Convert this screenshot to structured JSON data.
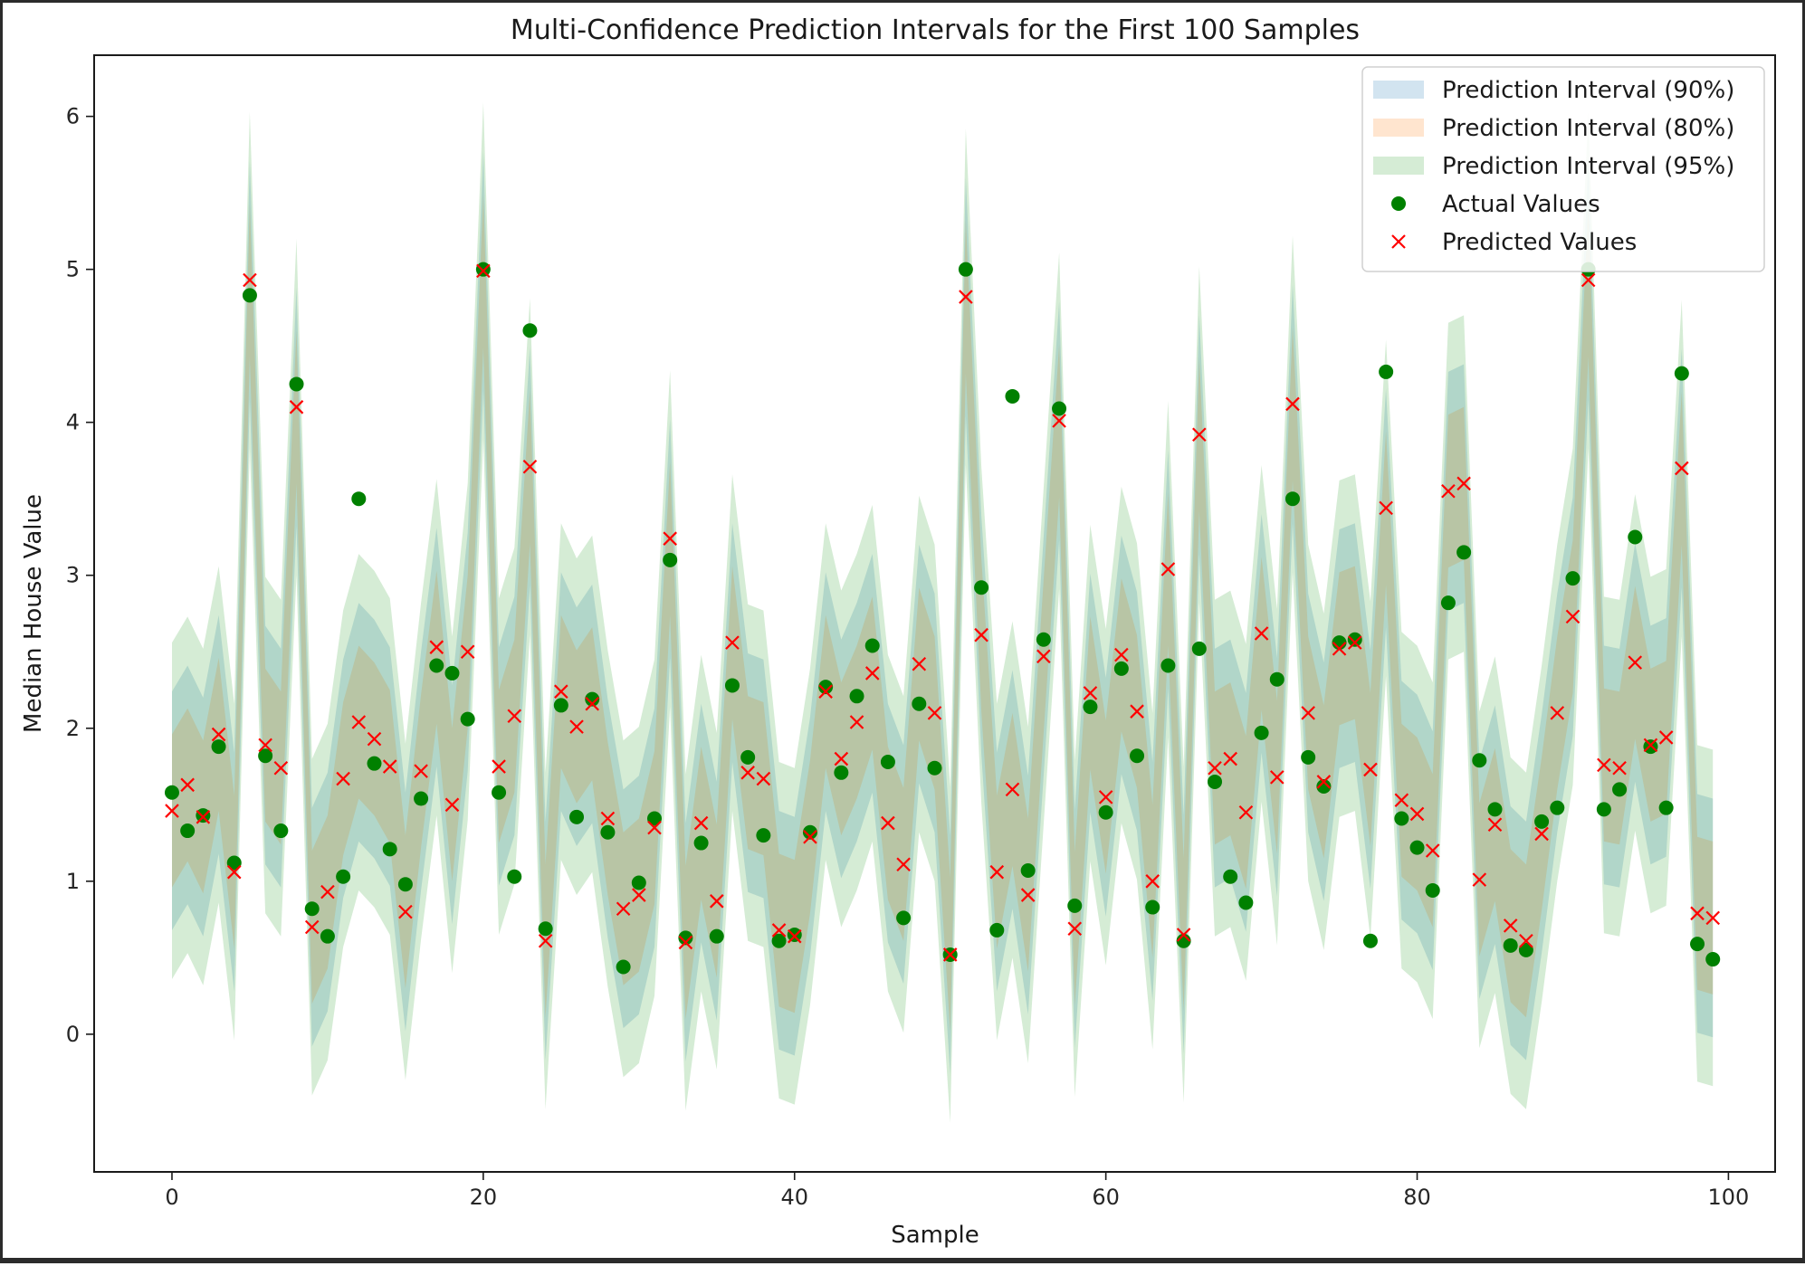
{
  "chart_data": {
    "type": "line",
    "title": "Multi-Confidence Prediction Intervals for the First 100 Samples",
    "xlabel": "Sample",
    "ylabel": "Median House Value",
    "xlim": [
      -5,
      103
    ],
    "ylim": [
      -0.9,
      6.4
    ],
    "xticks": [
      0,
      20,
      40,
      60,
      80,
      100
    ],
    "yticks": [
      0,
      1,
      2,
      3,
      4,
      5,
      6
    ],
    "grid": false,
    "legend_position": "upper right",
    "x": [
      0,
      1,
      2,
      3,
      4,
      5,
      6,
      7,
      8,
      9,
      10,
      11,
      12,
      13,
      14,
      15,
      16,
      17,
      18,
      19,
      20,
      21,
      22,
      23,
      24,
      25,
      26,
      27,
      28,
      29,
      30,
      31,
      32,
      33,
      34,
      35,
      36,
      37,
      38,
      39,
      40,
      41,
      42,
      43,
      44,
      45,
      46,
      47,
      48,
      49,
      50,
      51,
      52,
      53,
      54,
      55,
      56,
      57,
      58,
      59,
      60,
      61,
      62,
      63,
      64,
      65,
      66,
      67,
      68,
      69,
      70,
      71,
      72,
      73,
      74,
      75,
      76,
      77,
      78,
      79,
      80,
      81,
      82,
      83,
      84,
      85,
      86,
      87,
      88,
      89,
      90,
      91,
      92,
      93,
      94,
      95,
      96,
      97,
      98,
      99
    ],
    "series": [
      {
        "name": "Prediction Interval (90%)",
        "kind": "band",
        "color": "#1f77b4",
        "opacity": 0.2,
        "half_width": 0.78
      },
      {
        "name": "Prediction Interval (80%)",
        "kind": "band",
        "color": "#ff7f0e",
        "opacity": 0.2,
        "half_width": 0.5
      },
      {
        "name": "Prediction Interval (95%)",
        "kind": "band",
        "color": "#2ca02c",
        "opacity": 0.2,
        "half_width": 1.1
      },
      {
        "name": "Actual Values",
        "kind": "points",
        "marker": "circle",
        "color": "#008000",
        "values": [
          1.58,
          1.33,
          1.43,
          1.88,
          1.12,
          4.83,
          1.82,
          1.33,
          4.25,
          0.82,
          0.64,
          1.03,
          3.5,
          1.77,
          1.21,
          0.98,
          1.54,
          2.41,
          2.36,
          2.06,
          5.0,
          1.58,
          1.03,
          4.6,
          0.69,
          2.15,
          1.42,
          2.19,
          1.32,
          0.44,
          0.99,
          1.41,
          3.1,
          0.63,
          1.25,
          0.64,
          2.28,
          1.81,
          1.3,
          0.61,
          0.65,
          1.32,
          2.27,
          1.71,
          2.21,
          2.54,
          1.78,
          0.76,
          2.16,
          1.74,
          0.52,
          5.0,
          2.92,
          0.68,
          4.17,
          1.07,
          2.58,
          4.09,
          0.84,
          2.14,
          1.45,
          2.39,
          1.82,
          0.83,
          2.41,
          0.61,
          2.52,
          1.65,
          1.03,
          0.86,
          1.97,
          2.32,
          3.5,
          1.81,
          1.62,
          2.56,
          2.58,
          0.61,
          4.33,
          1.41,
          1.22,
          0.94,
          2.82,
          3.15,
          1.79,
          1.47,
          0.58,
          0.55,
          1.39,
          1.48,
          2.98,
          5.0,
          1.47,
          1.6,
          3.25,
          1.88,
          1.48,
          4.32,
          0.59,
          0.49
        ]
      },
      {
        "name": "Predicted Values",
        "kind": "points",
        "marker": "x",
        "color": "#ff0000",
        "values": [
          1.46,
          1.63,
          1.42,
          1.96,
          1.06,
          4.93,
          1.89,
          1.74,
          4.1,
          0.7,
          0.93,
          1.67,
          2.04,
          1.93,
          1.75,
          0.8,
          1.72,
          2.53,
          1.5,
          2.5,
          4.99,
          1.75,
          2.08,
          3.71,
          0.61,
          2.24,
          2.01,
          2.16,
          1.41,
          0.82,
          0.91,
          1.35,
          3.24,
          0.6,
          1.38,
          0.87,
          2.56,
          1.71,
          1.67,
          0.68,
          0.64,
          1.29,
          2.24,
          1.8,
          2.04,
          2.36,
          1.38,
          1.11,
          2.42,
          2.1,
          0.52,
          4.82,
          2.61,
          1.06,
          1.6,
          0.91,
          2.47,
          4.01,
          0.69,
          2.23,
          1.55,
          2.48,
          2.11,
          1.0,
          3.04,
          0.65,
          3.92,
          1.74,
          1.8,
          1.45,
          2.62,
          1.68,
          4.12,
          2.1,
          1.65,
          2.52,
          2.56,
          1.73,
          3.44,
          1.53,
          1.44,
          1.2,
          3.55,
          3.6,
          1.01,
          1.37,
          0.71,
          0.61,
          1.31,
          2.1,
          2.73,
          4.93,
          1.76,
          1.74,
          2.43,
          1.89,
          1.94,
          3.7,
          0.79,
          0.76
        ]
      }
    ]
  }
}
